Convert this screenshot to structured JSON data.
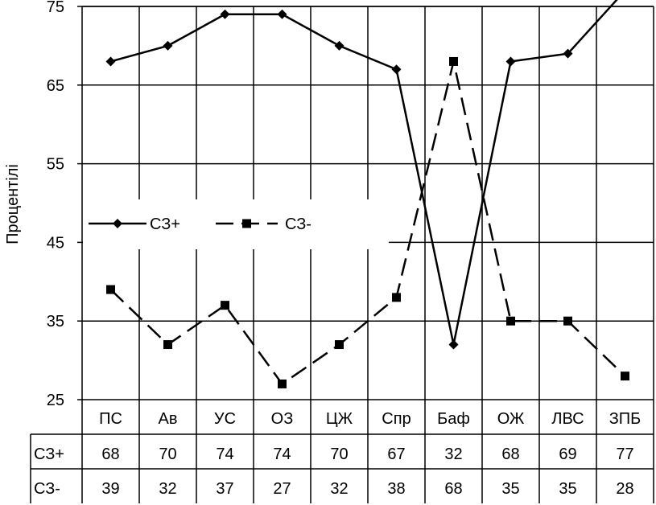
{
  "chart_data": {
    "type": "line",
    "ylabel": "Процентілі",
    "ylim": [
      25,
      75
    ],
    "yticks": [
      25,
      35,
      45,
      55,
      65,
      75
    ],
    "grid": true,
    "legend_position": "middle-left",
    "categories": [
      "ПС",
      "Ав",
      "УС",
      "ОЗ",
      "ЦЖ",
      "Спр",
      "Баф",
      "ОЖ",
      "ЛВС",
      "ЗПБ"
    ],
    "series": [
      {
        "name": "СЗ+",
        "values": [
          68,
          70,
          74,
          74,
          70,
          67,
          32,
          68,
          69,
          77
        ],
        "style": "solid",
        "marker": "diamond",
        "color": "#000000"
      },
      {
        "name": "СЗ-",
        "values": [
          39,
          32,
          37,
          27,
          32,
          38,
          68,
          35,
          35,
          28
        ],
        "style": "dashed",
        "marker": "square",
        "color": "#000000"
      }
    ],
    "data_table": true
  }
}
